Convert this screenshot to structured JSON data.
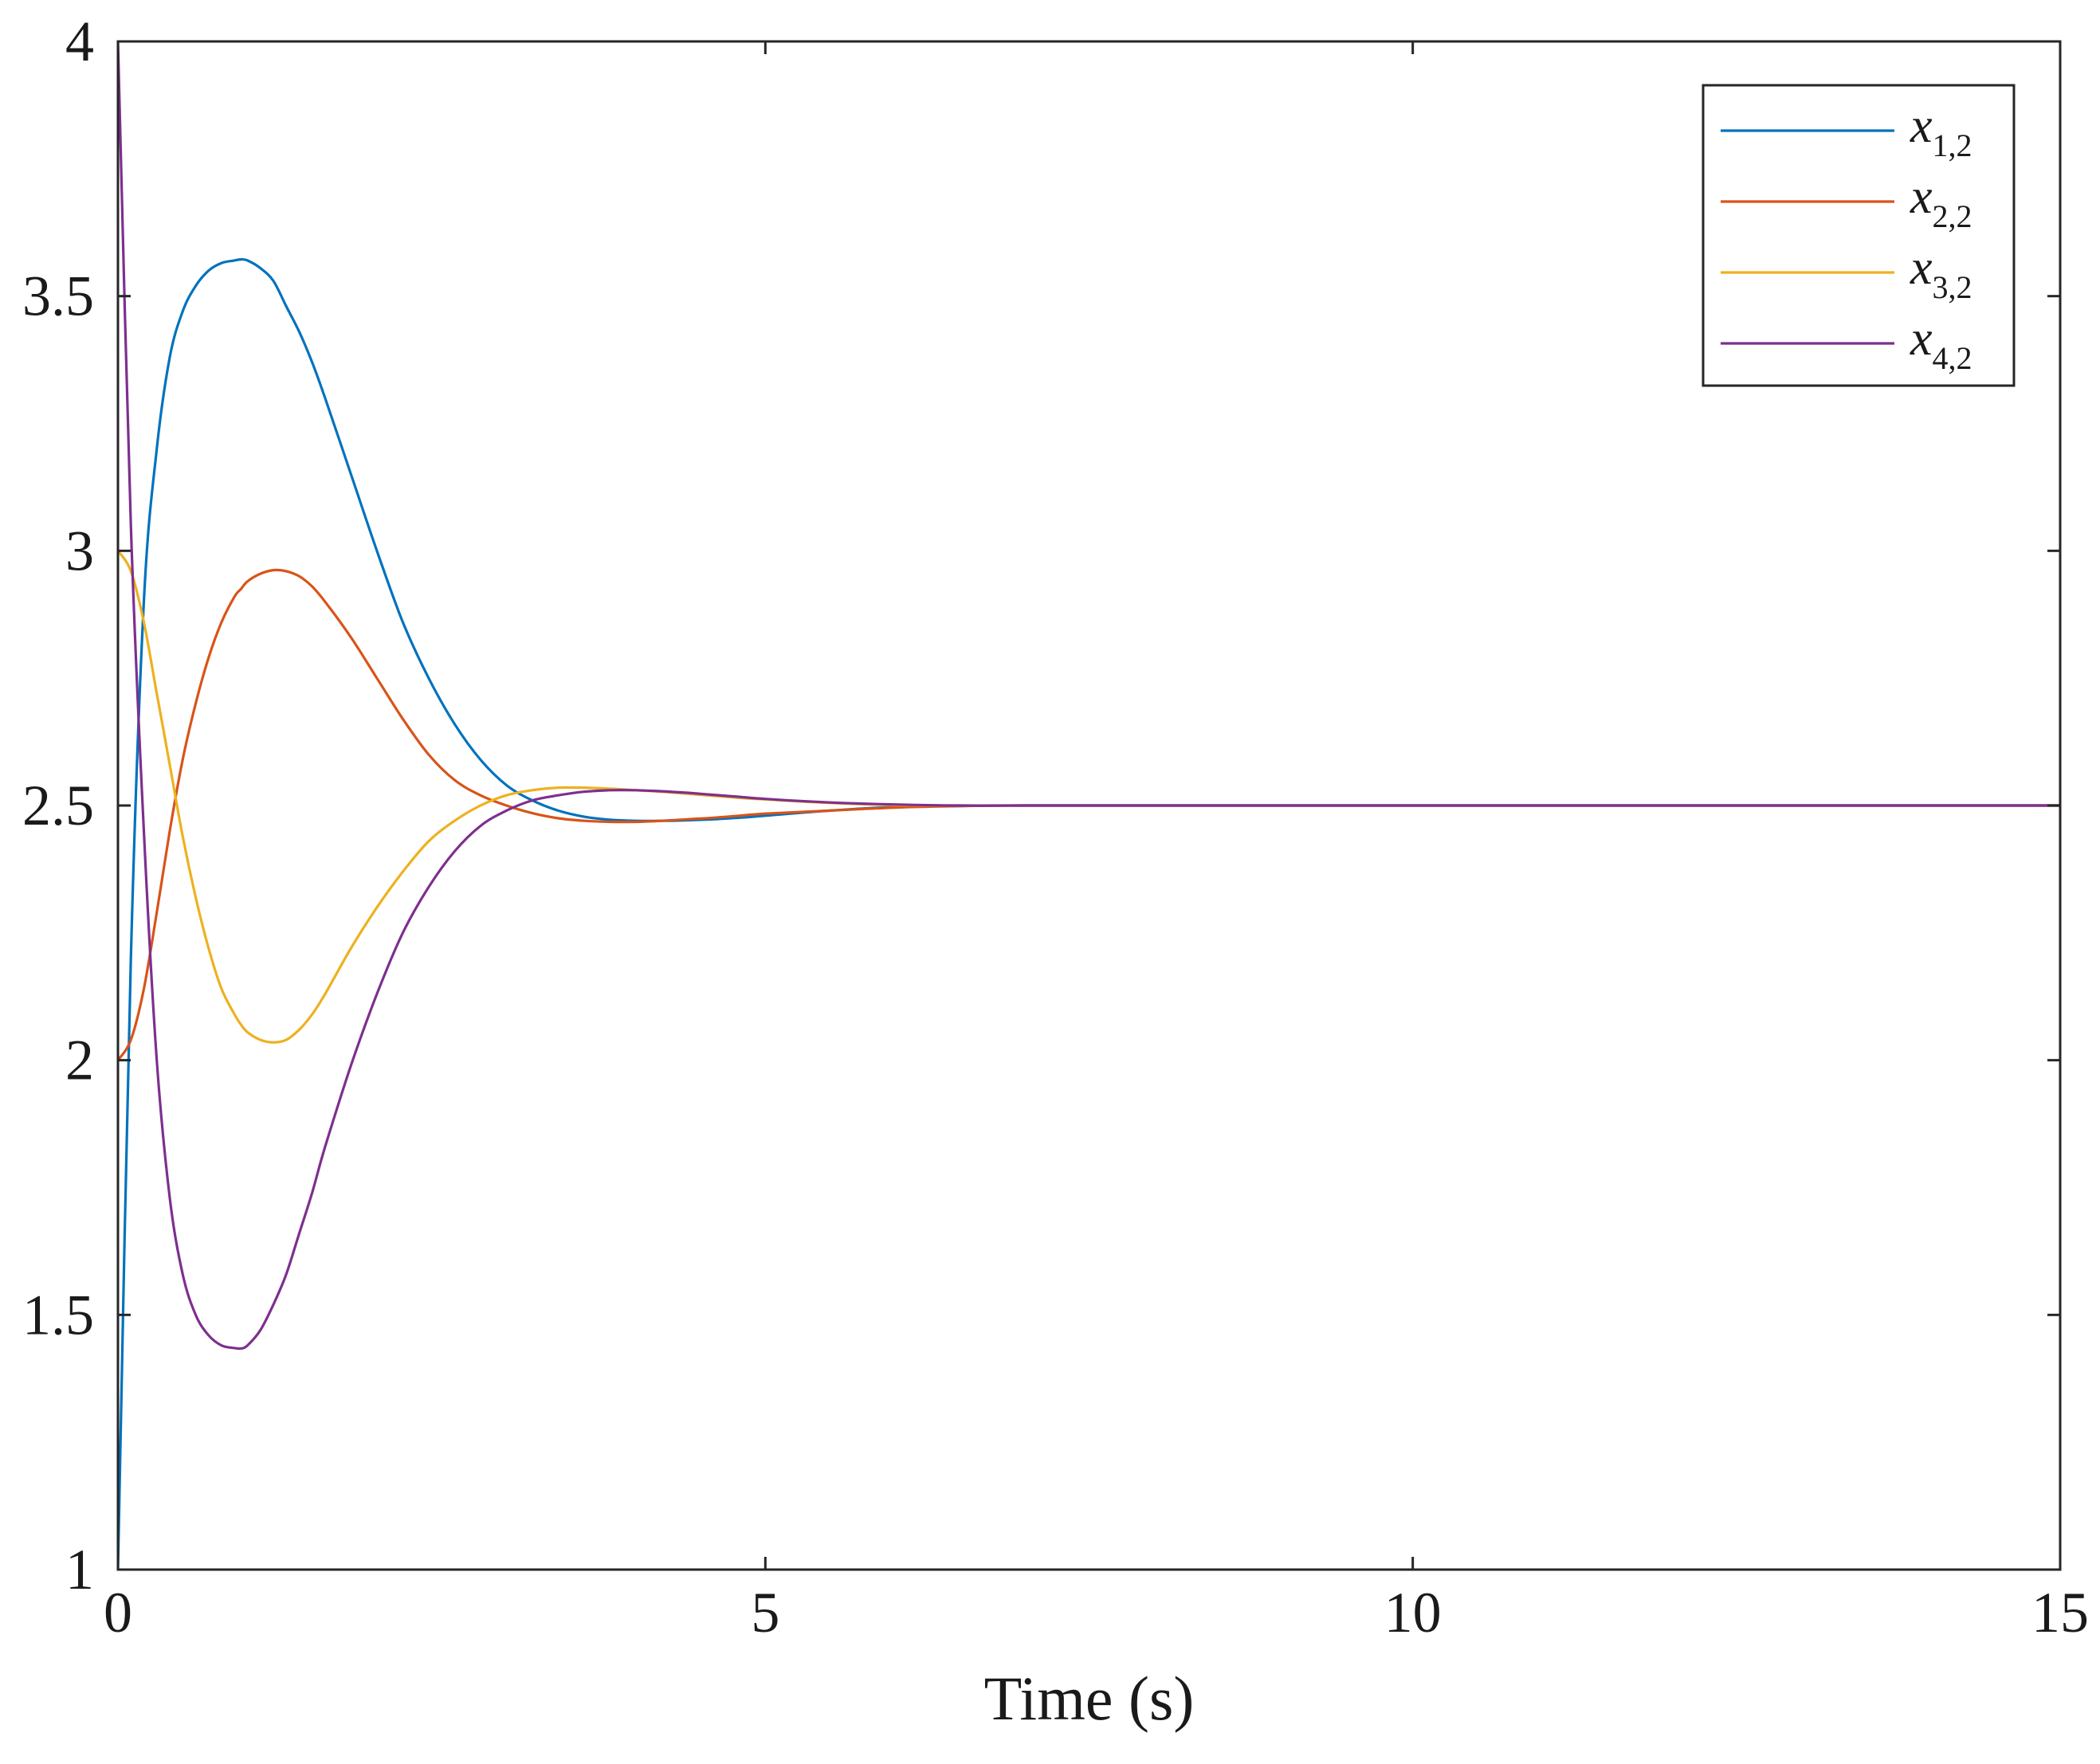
{
  "chart_data": {
    "type": "line",
    "title": "",
    "xlabel": "Time (s)",
    "ylabel": "",
    "xlim": [
      0,
      15
    ],
    "ylim": [
      1,
      4
    ],
    "xticks": [
      "0",
      "5",
      "10",
      "15"
    ],
    "yticks": [
      "1",
      "1.5",
      "2",
      "2.5",
      "3",
      "3.5",
      "4"
    ],
    "grid": false,
    "legend_position": "top-right",
    "x": [
      0,
      0.1,
      0.2,
      0.3,
      0.4,
      0.5,
      0.6,
      0.7,
      0.8,
      0.9,
      0.95,
      1.0,
      1.1,
      1.2,
      1.3,
      1.4,
      1.5,
      1.6,
      1.8,
      2.0,
      2.2,
      2.4,
      2.6,
      2.8,
      3.0,
      3.2,
      3.4,
      3.6,
      3.8,
      4.0,
      4.2,
      4.4,
      4.6,
      4.8,
      5.0,
      5.5,
      6.0,
      6.5,
      7.0,
      8.0,
      10.0,
      12.0,
      15.0
    ],
    "series": [
      {
        "name": "x",
        "subscript": "1,2",
        "color": "#0072BD",
        "values": [
          1.0,
          2.2,
          2.9,
          3.2,
          3.38,
          3.47,
          3.52,
          3.55,
          3.565,
          3.57,
          3.572,
          3.57,
          3.555,
          3.53,
          3.48,
          3.43,
          3.37,
          3.3,
          3.15,
          3.0,
          2.86,
          2.75,
          2.66,
          2.59,
          2.54,
          2.51,
          2.49,
          2.478,
          2.472,
          2.47,
          2.47,
          2.471,
          2.473,
          2.476,
          2.48,
          2.49,
          2.497,
          2.499,
          2.5,
          2.5,
          2.5,
          2.5,
          2.5
        ]
      },
      {
        "name": "x",
        "subscript": "2,2",
        "color": "#D95319",
        "values": [
          2.0,
          2.04,
          2.14,
          2.29,
          2.45,
          2.59,
          2.7,
          2.79,
          2.86,
          2.91,
          2.925,
          2.94,
          2.955,
          2.962,
          2.96,
          2.95,
          2.93,
          2.9,
          2.83,
          2.75,
          2.67,
          2.6,
          2.55,
          2.52,
          2.5,
          2.485,
          2.475,
          2.47,
          2.468,
          2.468,
          2.47,
          2.473,
          2.476,
          2.48,
          2.484,
          2.49,
          2.496,
          2.499,
          2.5,
          2.5,
          2.5,
          2.5,
          2.5
        ]
      },
      {
        "name": "x",
        "subscript": "3,2",
        "color": "#EDB120",
        "values": [
          3.0,
          2.96,
          2.86,
          2.72,
          2.58,
          2.44,
          2.32,
          2.22,
          2.14,
          2.09,
          2.07,
          2.055,
          2.04,
          2.035,
          2.04,
          2.06,
          2.09,
          2.13,
          2.22,
          2.3,
          2.37,
          2.43,
          2.47,
          2.5,
          2.52,
          2.53,
          2.535,
          2.535,
          2.533,
          2.53,
          2.527,
          2.523,
          2.519,
          2.515,
          2.512,
          2.505,
          2.501,
          2.5,
          2.5,
          2.5,
          2.5,
          2.5,
          2.5
        ]
      },
      {
        "name": "x",
        "subscript": "4,2",
        "color": "#7E2F8E",
        "values": [
          4.0,
          3.05,
          2.45,
          2.0,
          1.73,
          1.58,
          1.5,
          1.46,
          1.44,
          1.435,
          1.434,
          1.44,
          1.47,
          1.52,
          1.58,
          1.66,
          1.74,
          1.83,
          1.99,
          2.13,
          2.25,
          2.34,
          2.41,
          2.46,
          2.49,
          2.51,
          2.52,
          2.527,
          2.53,
          2.53,
          2.528,
          2.525,
          2.521,
          2.517,
          2.513,
          2.506,
          2.502,
          2.5,
          2.5,
          2.5,
          2.5,
          2.5,
          2.5
        ]
      }
    ]
  }
}
